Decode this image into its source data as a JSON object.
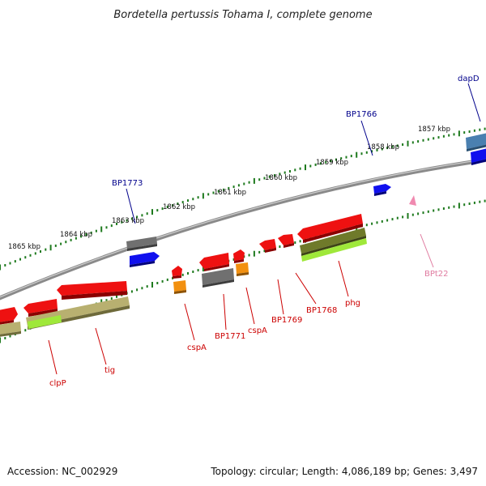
{
  "title": "Bordetella pertussis Tohama I, complete genome",
  "footer": {
    "accession": "Accession: NC_002929",
    "summary": "Topology: circular; Length: 4,086,189 bp; Genes: 3,497"
  },
  "scale_labels": [
    "1865 kbp",
    "1864 kbp",
    "1863 kbp",
    "1862 kbp",
    "1861 kbp",
    "1860 kbp",
    "1859 kbp",
    "1858 kbp",
    "1857 kbp"
  ],
  "gene_labels": [
    "clpP",
    "tig",
    "cspA",
    "BP1771",
    "cspA",
    "BP1769",
    "BP1768",
    "phg",
    "BPt22",
    "BP1773",
    "BP1766",
    "dapD"
  ],
  "colors": {
    "backbone": "#8a8a8a",
    "tick": "#1e7a1e",
    "cds": "#ee1111",
    "pseudo": "#707070",
    "orange": "#f29010",
    "blue": "#1010ee",
    "steel": "#4a80b0",
    "olive": "#b8b070",
    "lime": "#9fe83a",
    "trna": "#f08ab0",
    "label_red": "#cc0000",
    "label_blue": "#00008b",
    "label_pink": "#e07ba0"
  }
}
